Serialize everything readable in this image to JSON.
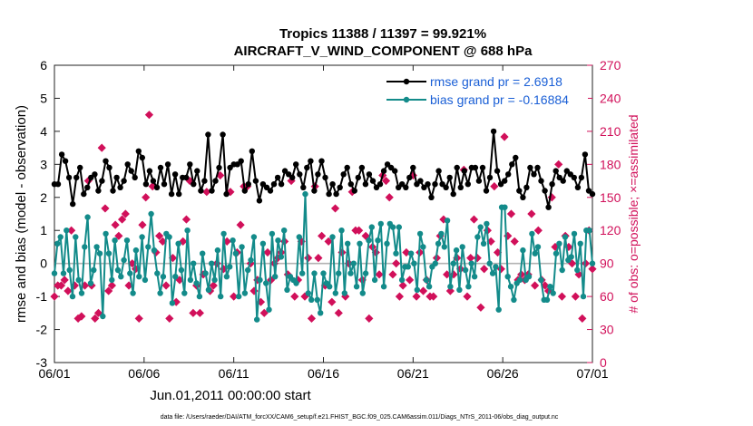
{
  "chart_data": {
    "type": "line",
    "title": "Tropics 11388 / 11397 = 99.921%",
    "subtitle": "AIRCRAFT_V_WIND_COMPONENT @ 688 hPa",
    "xlabel": "Jun.01,2011 00:00:00 start",
    "ylabel": "rmse and bias (model - observation)",
    "y2label": "# of obs: o=possible; ×=assimilated",
    "footer": "data file: /Users/raeder/DAI/ATM_forcXX/CAM6_setup/f.e21.FHIST_BGC.f09_025.CAM6assim.011/Diags_NTrS_2011-06/obs_diag_output.nc",
    "xlim": [
      0,
      30
    ],
    "ylim": [
      -3,
      6
    ],
    "y2lim": [
      0,
      270
    ],
    "x_tick_positions": [
      0,
      5,
      10,
      15,
      20,
      25,
      30
    ],
    "x_tick_labels": [
      "06/01",
      "06/06",
      "06/11",
      "06/16",
      "06/21",
      "06/26",
      "07/01"
    ],
    "y_ticks": [
      -3,
      -2,
      -1,
      0,
      1,
      2,
      3,
      4,
      5,
      6
    ],
    "y_tick_labels": [
      "-3",
      "-2",
      "-1",
      "0",
      "1",
      "2",
      "3",
      "4",
      "5",
      "6"
    ],
    "y2_ticks": [
      0,
      30,
      60,
      90,
      120,
      150,
      180,
      210,
      240,
      270
    ],
    "y2_tick_labels": [
      "0",
      "30",
      "60",
      "90",
      "120",
      "150",
      "180",
      "210",
      "240",
      "270"
    ],
    "legend_position": "top-right",
    "series": [
      {
        "name": "rmse grand pr = 2.6918",
        "color": "#000000",
        "marker": "circle",
        "values": [
          2.4,
          2.4,
          3.3,
          3.1,
          2.6,
          1.8,
          2.6,
          2.9,
          2.1,
          2.3,
          2.6,
          2.7,
          2.2,
          2.5,
          3.1,
          2.9,
          2.2,
          2.6,
          2.3,
          2.5,
          3.0,
          2.8,
          2.6,
          3.4,
          3.2,
          2.4,
          2.8,
          2.5,
          2.3,
          2.9,
          2.4,
          3.0,
          2.1,
          2.7,
          2.1,
          2.6,
          2.6,
          3.0,
          2.4,
          2.8,
          2.2,
          2.5,
          3.9,
          2.2,
          2.5,
          2.9,
          3.9,
          2.1,
          2.9,
          3.0,
          3.0,
          3.1,
          2.2,
          2.4,
          3.4,
          2.5,
          1.9,
          2.4,
          2.3,
          2.2,
          2.4,
          2.6,
          2.4,
          2.8,
          2.7,
          2.6,
          3.0,
          2.7,
          2.3,
          2.9,
          3.1,
          2.2,
          2.7,
          3.1,
          2.6,
          2.1,
          2.4,
          2.1,
          2.3,
          2.7,
          2.9,
          2.4,
          2.2,
          2.6,
          2.9,
          2.4,
          2.7,
          2.5,
          2.3,
          2.4,
          2.8,
          3.0,
          2.9,
          2.8,
          2.3,
          2.4,
          2.3,
          2.6,
          2.9,
          2.4,
          2.5,
          2.3,
          2.4,
          2.0,
          2.4,
          2.8,
          2.4,
          2.3,
          2.6,
          2.1,
          2.9,
          2.3,
          2.8,
          2.4,
          2.9,
          2.9,
          2.5,
          2.9,
          2.2,
          2.6,
          4.0,
          2.8,
          2.4,
          2.5,
          2.7,
          3.0,
          3.2,
          2.2,
          2.0,
          2.3,
          2.9,
          2.7,
          2.9,
          2.5,
          2.2,
          1.7,
          2.4,
          2.8,
          2.6,
          2.5,
          2.8,
          2.7,
          2.6,
          2.3,
          2.6,
          3.3,
          2.2,
          2.1
        ]
      },
      {
        "name": "bias grand pr = -0.16884",
        "color": "#138b8a",
        "marker": "circle",
        "values": [
          -0.3,
          0.6,
          0.8,
          -0.3,
          1.0,
          -0.2,
          -1.0,
          0.8,
          -0.5,
          -0.9,
          0.5,
          1.4,
          -0.6,
          -0.2,
          0.5,
          0.3,
          -1.6,
          0.9,
          0.3,
          -0.5,
          0.7,
          -0.2,
          -0.4,
          0.1,
          0.7,
          -0.3,
          -0.9,
          0.4,
          -0.4,
          0.8,
          -0.5,
          0.5,
          1.5,
          0.4,
          -0.3,
          -0.9,
          -0.4,
          0.9,
          0.8,
          -1.2,
          -0.4,
          0.6,
          -0.2,
          -0.9,
          1.0,
          -0.5,
          0.0,
          -0.6,
          -1.0,
          0.3,
          -0.3,
          -0.8,
          0.0,
          -0.5,
          0.4,
          -1.0,
          0.9,
          -0.4,
          -0.1,
          0.7,
          0.3,
          -1.0,
          0.5,
          -0.9,
          -0.2,
          0.1,
          0.8,
          -1.7,
          -0.5,
          0.6,
          -0.6,
          -1.4,
          0.9,
          -0.4,
          0.7,
          0.2,
          1.0,
          -0.8,
          -0.4,
          -0.5,
          -0.6,
          0.8,
          -0.3,
          2.1,
          -0.9,
          -1.1,
          -0.3,
          -1.1,
          -1.5,
          -0.3,
          -0.6,
          -0.7,
          0.8,
          -0.9,
          -0.3,
          1.0,
          -0.9,
          0.6,
          -0.3,
          0.0,
          -0.7,
          0.6,
          -0.9,
          -0.3,
          0.7,
          1.1,
          -0.5,
          0.7,
          1.2,
          -0.7,
          0.6,
          1.2,
          1.1,
          0.3,
          1.1,
          -0.5,
          -0.1,
          -0.1,
          0.3,
          0.0,
          -0.8,
          0.9,
          0.5,
          -0.5,
          -0.7,
          -0.1,
          0.0,
          0.6,
          0.9,
          0.5,
          1.3,
          -0.7,
          0.0,
          0.4,
          -0.8,
          0.5,
          -0.2,
          -0.7,
          0.0,
          -0.4,
          0.8,
          1.1,
          0.6,
          1.2,
          0.0,
          -0.3,
          -0.1,
          -1.4,
          1.7,
          1.7,
          -0.4,
          -0.7,
          -1.1,
          -0.6,
          -0.5,
          0.4,
          -0.5,
          -0.4,
          0.9,
          0.3,
          0.5,
          -0.5,
          -1.1,
          -1.1,
          -0.7,
          -0.9,
          0.3,
          0.6,
          -0.2,
          0.8,
          0.1,
          0.2,
          0.9,
          -0.2,
          0.6,
          -1.0,
          1.0,
          1.0,
          0.0
        ]
      },
      {
        "name": "# of obs (right axis)",
        "color": "#d1105a",
        "marker": "diamond",
        "values": [
          60,
          70,
          70,
          75,
          65,
          120,
          70,
          40,
          42,
          70,
          165,
          70,
          40,
          45,
          195,
          140,
          65,
          70,
          125,
          115,
          130,
          135,
          70,
          90,
          85,
          40,
          125,
          150,
          225,
          160,
          100,
          115,
          110,
          70,
          40,
          95,
          55,
          75,
          110,
          130,
          165,
          45,
          70,
          45,
          80,
          155,
          65,
          70,
          90,
          170,
          85,
          110,
          155,
          60,
          100,
          125,
          160,
          160,
          90,
          65,
          75,
          55,
          45,
          100,
          75,
          90,
          95,
          100,
          110,
          80,
          165,
          60,
          75,
          110,
          60,
          95,
          40,
          160,
          95,
          115,
          70,
          110,
          55,
          140,
          45,
          100,
          60,
          90,
          155,
          120,
          120,
          75,
          115,
          40,
          105,
          100,
          80,
          170,
          165,
          150,
          80,
          90,
          60,
          70,
          100,
          75,
          170,
          60,
          100,
          65,
          75,
          60,
          60,
          95,
          115,
          130,
          80,
          65,
          80,
          95,
          85,
          175,
          60,
          95,
          130,
          95,
          50,
          85,
          120,
          110,
          160,
          100,
          85,
          205,
          115,
          135,
          110,
          75,
          80,
          75,
          80,
          135,
          70,
          120,
          75,
          70,
          65,
          150,
          105,
          180,
          60,
          115,
          105,
          90,
          60,
          80,
          40,
          90,
          120,
          85
        ]
      }
    ]
  },
  "legend": {
    "rmse_label": "rmse grand pr = 2.6918",
    "bias_label": "bias grand pr = -0.16884"
  }
}
